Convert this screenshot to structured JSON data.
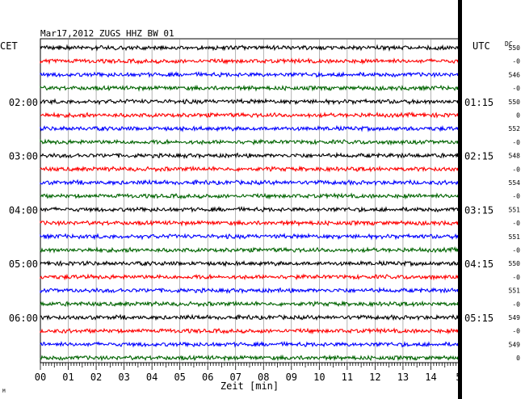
{
  "chart_data": {
    "type": "line",
    "header": "Mar17,2012   ZUGS HHZ BW 01",
    "left_tz_label": "CET",
    "right_tz_label": "UTC",
    "dc_label": "DC",
    "xlabel": "Zeit [min]",
    "xlim": [
      0,
      15
    ],
    "x_ticks": [
      "00",
      "01",
      "02",
      "03",
      "04",
      "05",
      "06",
      "07",
      "08",
      "09",
      "10",
      "11",
      "12",
      "13",
      "14",
      "5"
    ],
    "trace_colors": [
      "#000000",
      "#ff0000",
      "#0000ff",
      "#006400"
    ],
    "left_hour_labels": [
      {
        "trace_index": 4,
        "text": "02:00"
      },
      {
        "trace_index": 8,
        "text": "03:00"
      },
      {
        "trace_index": 12,
        "text": "04:00"
      },
      {
        "trace_index": 16,
        "text": "05:00"
      },
      {
        "trace_index": 20,
        "text": "06:00"
      }
    ],
    "right_hour_labels": [
      {
        "trace_index": 4,
        "text": "01:15"
      },
      {
        "trace_index": 8,
        "text": "02:15"
      },
      {
        "trace_index": 12,
        "text": "03:15"
      },
      {
        "trace_index": 16,
        "text": "04:15"
      },
      {
        "trace_index": 20,
        "text": "05:15"
      }
    ],
    "dc_offsets": [
      "550",
      "-0",
      "546",
      "-0",
      "550",
      "0",
      "552",
      "-0",
      "548",
      "-0",
      "554",
      "-0",
      "551",
      "-0",
      "551",
      "-0",
      "550",
      "-0",
      "551",
      "-0",
      "549",
      "-0",
      "549",
      "0"
    ],
    "trace_count": 24,
    "corner_mark": "M"
  }
}
